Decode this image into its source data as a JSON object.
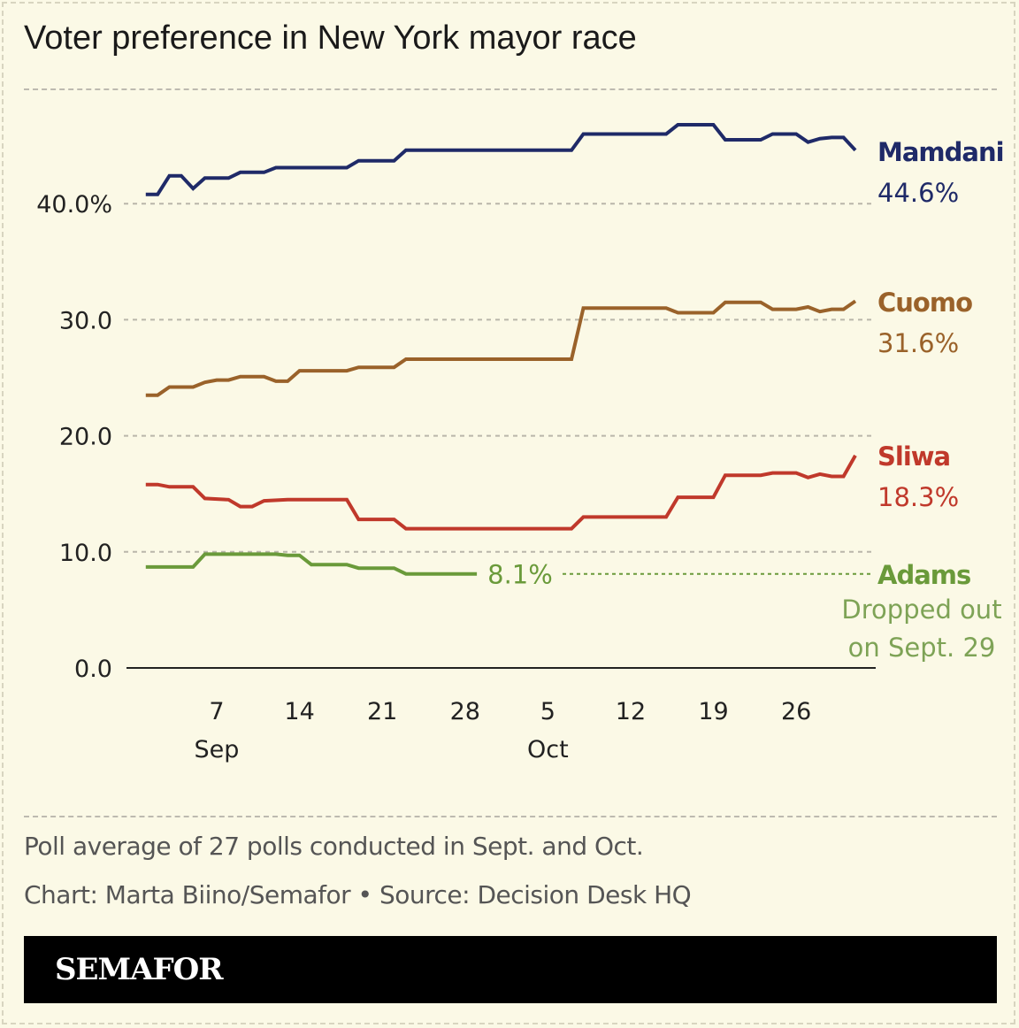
{
  "title": "Voter preference in New York mayor race",
  "footer": {
    "note": "Poll average of 27 polls conducted in Sept. and Oct.",
    "credit": "Chart: Marta Biino/Semafor • Source: Decision Desk HQ",
    "brand": "SEMAFOR"
  },
  "chart_data": {
    "type": "line",
    "title": "Voter preference in New York mayor race",
    "ylim": [
      0,
      47
    ],
    "xlim": [
      "2025-09-01",
      "2025-10-31"
    ],
    "y_ticks": [
      {
        "value": 0,
        "label": "0.0"
      },
      {
        "value": 10,
        "label": "10.0"
      },
      {
        "value": 20,
        "label": "20.0"
      },
      {
        "value": 30,
        "label": "30.0"
      },
      {
        "value": 40,
        "label": "40.0%"
      }
    ],
    "x_ticks": [
      {
        "date": "2025-09-07",
        "label": "7",
        "month": "Sep"
      },
      {
        "date": "2025-09-14",
        "label": "14",
        "month": ""
      },
      {
        "date": "2025-09-21",
        "label": "21",
        "month": ""
      },
      {
        "date": "2025-09-28",
        "label": "28",
        "month": ""
      },
      {
        "date": "2025-10-05",
        "label": "5",
        "month": "Oct"
      },
      {
        "date": "2025-10-12",
        "label": "12",
        "month": ""
      },
      {
        "date": "2025-10-19",
        "label": "19",
        "month": ""
      },
      {
        "date": "2025-10-26",
        "label": "26",
        "month": ""
      }
    ],
    "grid": true,
    "series": [
      {
        "name": "Mamdani",
        "end_label": "44.6%",
        "color": "#1f2a68",
        "points": [
          [
            "2025-09-01",
            40.8
          ],
          [
            "2025-09-02",
            40.8
          ],
          [
            "2025-09-03",
            42.4
          ],
          [
            "2025-09-04",
            42.4
          ],
          [
            "2025-09-05",
            41.3
          ],
          [
            "2025-09-06",
            42.2
          ],
          [
            "2025-09-08",
            42.2
          ],
          [
            "2025-09-09",
            42.7
          ],
          [
            "2025-09-11",
            42.7
          ],
          [
            "2025-09-12",
            43.1
          ],
          [
            "2025-09-18",
            43.1
          ],
          [
            "2025-09-19",
            43.7
          ],
          [
            "2025-09-22",
            43.7
          ],
          [
            "2025-09-23",
            44.6
          ],
          [
            "2025-10-07",
            44.6
          ],
          [
            "2025-10-08",
            46.0
          ],
          [
            "2025-10-15",
            46.0
          ],
          [
            "2025-10-16",
            46.8
          ],
          [
            "2025-10-19",
            46.8
          ],
          [
            "2025-10-20",
            45.5
          ],
          [
            "2025-10-23",
            45.5
          ],
          [
            "2025-10-24",
            46.0
          ],
          [
            "2025-10-26",
            46.0
          ],
          [
            "2025-10-27",
            45.3
          ],
          [
            "2025-10-28",
            45.6
          ],
          [
            "2025-10-29",
            45.7
          ],
          [
            "2025-10-30",
            45.7
          ],
          [
            "2025-10-31",
            44.6
          ]
        ]
      },
      {
        "name": "Cuomo",
        "end_label": "31.6%",
        "color": "#9a622a",
        "points": [
          [
            "2025-09-01",
            23.5
          ],
          [
            "2025-09-02",
            23.5
          ],
          [
            "2025-09-03",
            24.2
          ],
          [
            "2025-09-05",
            24.2
          ],
          [
            "2025-09-06",
            24.6
          ],
          [
            "2025-09-07",
            24.8
          ],
          [
            "2025-09-08",
            24.8
          ],
          [
            "2025-09-09",
            25.1
          ],
          [
            "2025-09-11",
            25.1
          ],
          [
            "2025-09-12",
            24.7
          ],
          [
            "2025-09-13",
            24.7
          ],
          [
            "2025-09-14",
            25.6
          ],
          [
            "2025-09-18",
            25.6
          ],
          [
            "2025-09-19",
            25.9
          ],
          [
            "2025-09-22",
            25.9
          ],
          [
            "2025-09-23",
            26.6
          ],
          [
            "2025-10-07",
            26.6
          ],
          [
            "2025-10-08",
            31.0
          ],
          [
            "2025-10-15",
            31.0
          ],
          [
            "2025-10-16",
            30.6
          ],
          [
            "2025-10-19",
            30.6
          ],
          [
            "2025-10-20",
            31.5
          ],
          [
            "2025-10-23",
            31.5
          ],
          [
            "2025-10-24",
            30.9
          ],
          [
            "2025-10-26",
            30.9
          ],
          [
            "2025-10-27",
            31.1
          ],
          [
            "2025-10-28",
            30.7
          ],
          [
            "2025-10-29",
            30.9
          ],
          [
            "2025-10-30",
            30.9
          ],
          [
            "2025-10-31",
            31.6
          ]
        ]
      },
      {
        "name": "Sliwa",
        "end_label": "18.3%",
        "color": "#c0392b",
        "points": [
          [
            "2025-09-01",
            15.8
          ],
          [
            "2025-09-02",
            15.8
          ],
          [
            "2025-09-03",
            15.6
          ],
          [
            "2025-09-05",
            15.6
          ],
          [
            "2025-09-06",
            14.6
          ],
          [
            "2025-09-08",
            14.5
          ],
          [
            "2025-09-09",
            13.9
          ],
          [
            "2025-09-10",
            13.9
          ],
          [
            "2025-09-11",
            14.4
          ],
          [
            "2025-09-13",
            14.5
          ],
          [
            "2025-09-18",
            14.5
          ],
          [
            "2025-09-19",
            12.8
          ],
          [
            "2025-09-22",
            12.8
          ],
          [
            "2025-09-23",
            12.0
          ],
          [
            "2025-10-07",
            12.0
          ],
          [
            "2025-10-08",
            13.0
          ],
          [
            "2025-10-15",
            13.0
          ],
          [
            "2025-10-16",
            14.7
          ],
          [
            "2025-10-19",
            14.7
          ],
          [
            "2025-10-20",
            16.6
          ],
          [
            "2025-10-23",
            16.6
          ],
          [
            "2025-10-24",
            16.8
          ],
          [
            "2025-10-26",
            16.8
          ],
          [
            "2025-10-27",
            16.4
          ],
          [
            "2025-10-28",
            16.7
          ],
          [
            "2025-10-29",
            16.5
          ],
          [
            "2025-10-30",
            16.5
          ],
          [
            "2025-10-31",
            18.3
          ]
        ]
      },
      {
        "name": "Adams",
        "end_label": "8.1%",
        "color": "#6a9a3a",
        "note_line1": "Dropped out",
        "note_line2": "on Sept. 29",
        "points": [
          [
            "2025-09-01",
            8.7
          ],
          [
            "2025-09-05",
            8.7
          ],
          [
            "2025-09-06",
            9.8
          ],
          [
            "2025-09-12",
            9.8
          ],
          [
            "2025-09-13",
            9.7
          ],
          [
            "2025-09-14",
            9.7
          ],
          [
            "2025-09-15",
            8.9
          ],
          [
            "2025-09-18",
            8.9
          ],
          [
            "2025-09-19",
            8.6
          ],
          [
            "2025-09-22",
            8.6
          ],
          [
            "2025-09-23",
            8.1
          ],
          [
            "2025-09-29",
            8.1
          ]
        ]
      }
    ]
  }
}
